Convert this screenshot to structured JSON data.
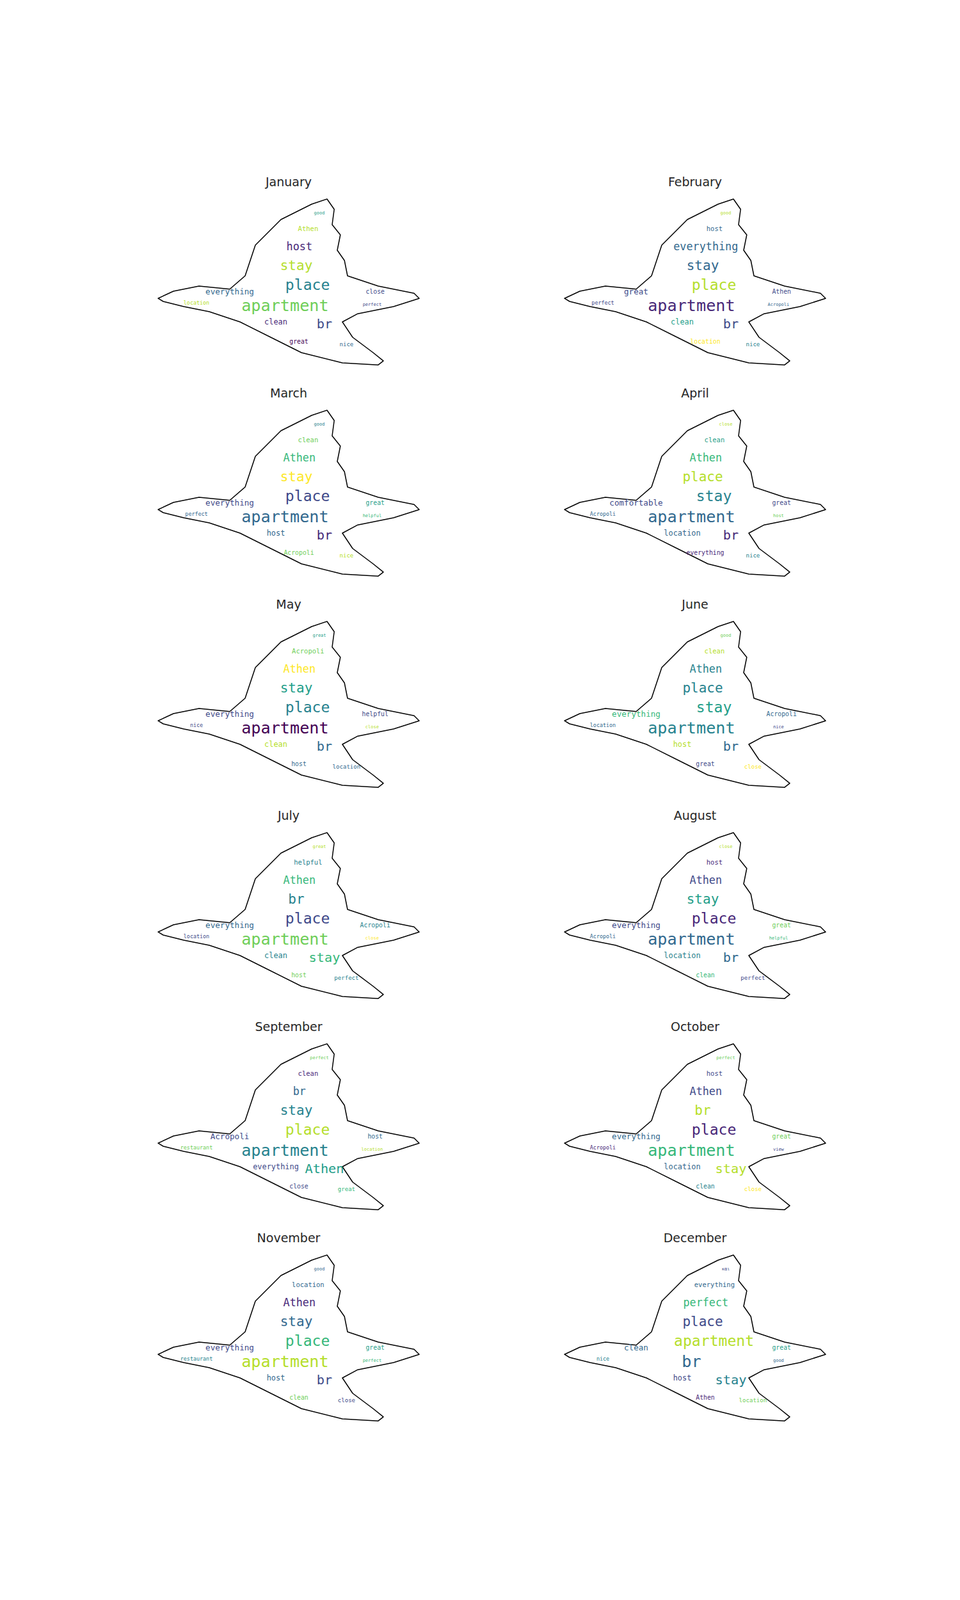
{
  "chart_data": [
    {
      "type": "wordcloud",
      "title": "January",
      "words": [
        "apartment",
        "place",
        "stay",
        "br",
        "host",
        "everything",
        "clean",
        "Athen",
        "close",
        "great",
        "nice",
        "location",
        "good",
        "perfect"
      ],
      "weights": [
        72,
        66,
        60,
        58,
        48,
        36,
        34,
        30,
        28,
        28,
        26,
        24,
        20,
        20
      ],
      "colors": [
        "#6ece58",
        "#26828e",
        "#b5de2b",
        "#3e4989",
        "#482878",
        "#31688e",
        "#482878",
        "#b5de2b",
        "#3e4989",
        "#440154",
        "#31688e",
        "#b5de2b",
        "#1f9e89",
        "#3e4989"
      ]
    },
    {
      "type": "wordcloud",
      "title": "February",
      "words": [
        "apartment",
        "place",
        "stay",
        "br",
        "everything",
        "great",
        "clean",
        "host",
        "Athen",
        "location",
        "nice",
        "perfect",
        "good",
        "Acropoli"
      ],
      "weights": [
        72,
        66,
        60,
        58,
        48,
        36,
        34,
        30,
        28,
        28,
        26,
        24,
        20,
        20
      ],
      "colors": [
        "#482878",
        "#b5de2b",
        "#31688e",
        "#3e4989",
        "#31688e",
        "#3e4989",
        "#1f9e89",
        "#31688e",
        "#3e4989",
        "#fde725",
        "#26828e",
        "#3e4989",
        "#b5de2b",
        "#31688e"
      ]
    },
    {
      "type": "wordcloud",
      "title": "March",
      "words": [
        "apartment",
        "place",
        "stay",
        "br",
        "Athen",
        "everything",
        "host",
        "clean",
        "great",
        "Acropoli",
        "nice",
        "perfect",
        "good",
        "helpful"
      ],
      "weights": [
        72,
        66,
        60,
        58,
        48,
        36,
        34,
        30,
        28,
        28,
        26,
        24,
        20,
        20
      ],
      "colors": [
        "#31688e",
        "#3e4989",
        "#fde725",
        "#482878",
        "#35b779",
        "#3e4989",
        "#31688e",
        "#6ece58",
        "#1f9e89",
        "#6ece58",
        "#b5de2b",
        "#31688e",
        "#26828e",
        "#35b779"
      ]
    },
    {
      "type": "wordcloud",
      "title": "April",
      "words": [
        "apartment",
        "stay",
        "place",
        "br",
        "Athen",
        "comfortable",
        "location",
        "clean",
        "great",
        "everything",
        "nice",
        "Acropoli",
        "close",
        "host"
      ],
      "weights": [
        72,
        66,
        60,
        58,
        48,
        36,
        34,
        30,
        28,
        28,
        26,
        24,
        20,
        20
      ],
      "colors": [
        "#31688e",
        "#26828e",
        "#b5de2b",
        "#482878",
        "#35b779",
        "#3e4989",
        "#31688e",
        "#1f9e89",
        "#3e4989",
        "#482878",
        "#26828e",
        "#31688e",
        "#b5de2b",
        "#6ece58"
      ]
    },
    {
      "type": "wordcloud",
      "title": "May",
      "words": [
        "apartment",
        "place",
        "stay",
        "br",
        "Athen",
        "everything",
        "clean",
        "Acropoli",
        "helpful",
        "host",
        "location",
        "nice",
        "great",
        "close"
      ],
      "weights": [
        72,
        66,
        60,
        58,
        48,
        36,
        34,
        30,
        28,
        28,
        26,
        24,
        20,
        20
      ],
      "colors": [
        "#440154",
        "#26828e",
        "#1f9e89",
        "#31688e",
        "#fde725",
        "#3e4989",
        "#b5de2b",
        "#6ece58",
        "#3e4989",
        "#31688e",
        "#31688e",
        "#3e4989",
        "#1f9e89",
        "#b5de2b"
      ]
    },
    {
      "type": "wordcloud",
      "title": "June",
      "words": [
        "apartment",
        "stay",
        "place",
        "br",
        "Athen",
        "everything",
        "host",
        "clean",
        "Acropoli",
        "great",
        "close",
        "location",
        "good",
        "nice"
      ],
      "weights": [
        72,
        66,
        60,
        58,
        48,
        36,
        34,
        30,
        28,
        28,
        26,
        24,
        20,
        20
      ],
      "colors": [
        "#26828e",
        "#1f9e89",
        "#26828e",
        "#31688e",
        "#26828e",
        "#35b779",
        "#b5de2b",
        "#b5de2b",
        "#31688e",
        "#3e4989",
        "#fde725",
        "#31688e",
        "#6ece58",
        "#3e4989"
      ]
    },
    {
      "type": "wordcloud",
      "title": "July",
      "words": [
        "apartment",
        "place",
        "br",
        "stay",
        "Athen",
        "everything",
        "clean",
        "helpful",
        "Acropoli",
        "host",
        "perfect",
        "location",
        "great",
        "close"
      ],
      "weights": [
        72,
        66,
        60,
        58,
        48,
        36,
        34,
        30,
        28,
        28,
        26,
        24,
        20,
        20
      ],
      "colors": [
        "#6ece58",
        "#3e4989",
        "#26828e",
        "#35b779",
        "#35b779",
        "#31688e",
        "#26828e",
        "#26828e",
        "#26828e",
        "#6ece58",
        "#26828e",
        "#3e4989",
        "#b5de2b",
        "#fde725"
      ]
    },
    {
      "type": "wordcloud",
      "title": "August",
      "words": [
        "apartment",
        "place",
        "stay",
        "br",
        "Athen",
        "everything",
        "location",
        "host",
        "great",
        "clean",
        "perfect",
        "Acropoli",
        "close",
        "helpful"
      ],
      "weights": [
        72,
        66,
        60,
        58,
        48,
        36,
        34,
        30,
        28,
        28,
        26,
        24,
        20,
        20
      ],
      "colors": [
        "#31688e",
        "#482878",
        "#1f9e89",
        "#31688e",
        "#3e4989",
        "#3e4989",
        "#26828e",
        "#482878",
        "#6ece58",
        "#35b779",
        "#3e4989",
        "#31688e",
        "#b5de2b",
        "#35b779"
      ]
    },
    {
      "type": "wordcloud",
      "title": "September",
      "words": [
        "apartment",
        "place",
        "stay",
        "Athen",
        "br",
        "Acropoli",
        "everything",
        "clean",
        "host",
        "close",
        "great",
        "restaurant",
        "perfect",
        "location"
      ],
      "weights": [
        72,
        66,
        60,
        58,
        48,
        36,
        34,
        30,
        28,
        28,
        26,
        24,
        20,
        20
      ],
      "colors": [
        "#26828e",
        "#b5de2b",
        "#26828e",
        "#1f9e89",
        "#31688e",
        "#3e4989",
        "#3e4989",
        "#482878",
        "#31688e",
        "#3e4989",
        "#35b779",
        "#6ece58",
        "#6ece58",
        "#b5de2b"
      ]
    },
    {
      "type": "wordcloud",
      "title": "October",
      "words": [
        "apartment",
        "place",
        "br",
        "stay",
        "Athen",
        "everything",
        "location",
        "host",
        "great",
        "clean",
        "close",
        "Acropoli",
        "perfect",
        "view"
      ],
      "weights": [
        72,
        66,
        60,
        58,
        48,
        36,
        34,
        30,
        28,
        28,
        26,
        24,
        20,
        20
      ],
      "colors": [
        "#35b779",
        "#482878",
        "#b5de2b",
        "#b5de2b",
        "#3e4989",
        "#31688e",
        "#31688e",
        "#3e4989",
        "#6ece58",
        "#26828e",
        "#fde725",
        "#482878",
        "#6ece58",
        "#3e4989"
      ]
    },
    {
      "type": "wordcloud",
      "title": "November",
      "words": [
        "apartment",
        "place",
        "stay",
        "br",
        "Athen",
        "everything",
        "host",
        "location",
        "great",
        "clean",
        "close",
        "restaurant",
        "good",
        "perfect"
      ],
      "weights": [
        72,
        66,
        60,
        58,
        48,
        36,
        34,
        30,
        28,
        28,
        26,
        24,
        20,
        20
      ],
      "colors": [
        "#b5de2b",
        "#35b779",
        "#31688e",
        "#3e4989",
        "#482878",
        "#3e4989",
        "#31688e",
        "#31688e",
        "#1f9e89",
        "#6ece58",
        "#3e4989",
        "#26828e",
        "#31688e",
        "#35b779"
      ]
    },
    {
      "type": "wordcloud",
      "title": "December",
      "words": [
        "br",
        "apartment",
        "place",
        "stay",
        "perfect",
        "clean",
        "host",
        "everything",
        "great",
        "Athen",
        "location",
        "nice",
        "και",
        "good"
      ],
      "weights": [
        72,
        66,
        60,
        58,
        48,
        36,
        34,
        30,
        28,
        28,
        26,
        24,
        20,
        20
      ],
      "colors": [
        "#31688e",
        "#b5de2b",
        "#3e4989",
        "#26828e",
        "#35b779",
        "#31688e",
        "#3e4989",
        "#31688e",
        "#1f9e89",
        "#482878",
        "#6ece58",
        "#26828e",
        "#3e4989",
        "#31688e"
      ]
    }
  ]
}
